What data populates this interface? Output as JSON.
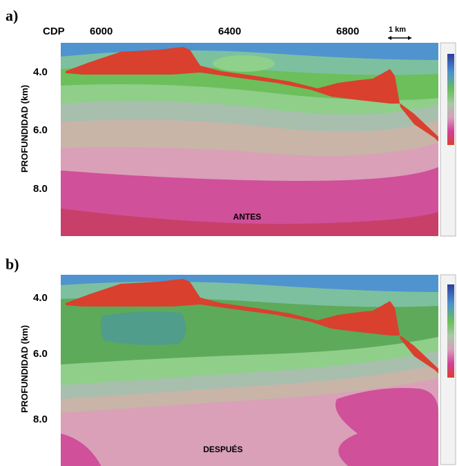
{
  "panels": [
    {
      "label": "a)",
      "x_axis_label": "CDP",
      "x_ticks": [
        6000,
        6400,
        6800
      ],
      "scale_bar": "1 km",
      "y_axis_label": "PROFUNDIDAD (km)",
      "y_ticks": [
        "4.0",
        "6.0",
        "8.0"
      ],
      "caption": "ANTES"
    },
    {
      "label": "b)",
      "y_axis_label": "PROFUNDIDAD (km)",
      "y_ticks": [
        "4.0",
        "6.0",
        "8.0"
      ],
      "caption": "DESPUÉS"
    }
  ]
}
